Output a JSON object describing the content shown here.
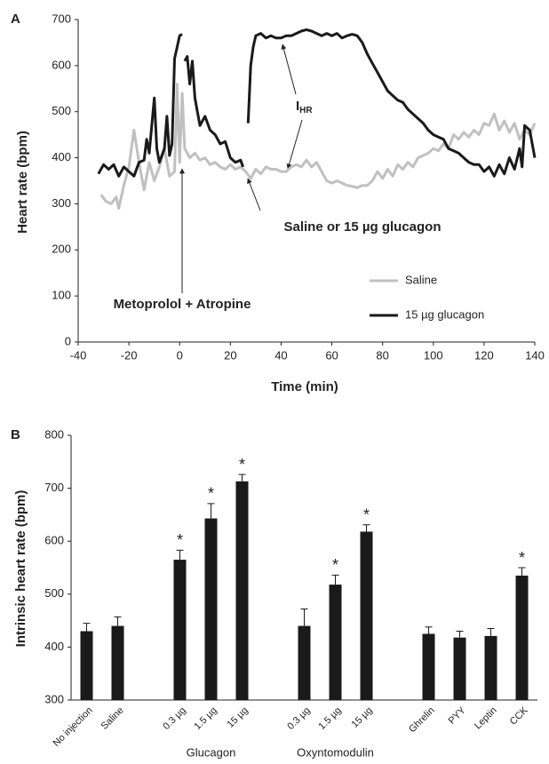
{
  "chart_data": [
    {
      "type": "line",
      "panel": "A",
      "xlabel": "Time (min)",
      "ylabel": "Heart rate (bpm)",
      "xlim": [
        -40,
        140
      ],
      "xticks": [
        -40,
        -20,
        0,
        20,
        40,
        60,
        80,
        100,
        120,
        140
      ],
      "ylim": [
        0,
        700
      ],
      "yticks": [
        0,
        100,
        200,
        300,
        400,
        500,
        600,
        700
      ],
      "legend": "lower right",
      "annotations": [
        "Metoprolol + Atropine",
        "Saline or 15 µg glucagon"
      ],
      "ihr_label": {
        "text": "I",
        "subscript": "HR"
      },
      "series": [
        {
          "name": "Saline",
          "color": "#c0c0c0",
          "x": [
            -31,
            -29,
            -27,
            -25,
            -24,
            -22,
            -20,
            -18,
            -16,
            -14,
            -12,
            -10,
            -8,
            -6,
            -4,
            -2,
            -1,
            0,
            1,
            2,
            4,
            6,
            8,
            10,
            12,
            14,
            16,
            18,
            20,
            22,
            24,
            26,
            28,
            30,
            32,
            34,
            36,
            38,
            40,
            42,
            44,
            46,
            48,
            50,
            52,
            54,
            56,
            58,
            60,
            62,
            64,
            66,
            68,
            70,
            72,
            74,
            76,
            78,
            80,
            82,
            84,
            86,
            88,
            90,
            92,
            94,
            96,
            98,
            100,
            102,
            104,
            106,
            108,
            110,
            112,
            114,
            116,
            118,
            120,
            122,
            124,
            126,
            128,
            130,
            132,
            134,
            136,
            138,
            140
          ],
          "values": [
            320,
            305,
            300,
            315,
            290,
            340,
            380,
            460,
            390,
            330,
            390,
            350,
            380,
            420,
            360,
            370,
            560,
            390,
            540,
            420,
            400,
            410,
            395,
            400,
            385,
            390,
            380,
            375,
            385,
            375,
            380,
            370,
            355,
            375,
            365,
            380,
            375,
            375,
            370,
            370,
            380,
            385,
            380,
            395,
            380,
            390,
            370,
            350,
            345,
            350,
            345,
            340,
            338,
            335,
            340,
            340,
            350,
            370,
            355,
            375,
            360,
            385,
            375,
            390,
            380,
            400,
            405,
            410,
            420,
            415,
            430,
            420,
            450,
            440,
            455,
            445,
            460,
            450,
            475,
            470,
            495,
            460,
            480,
            455,
            475,
            440,
            460,
            450,
            475
          ]
        },
        {
          "name": "15 µg glucagon",
          "color": "#1a1a1a",
          "x": [
            -32,
            -30,
            -28,
            -26,
            -24,
            -22,
            -20,
            -18,
            -16,
            -14,
            -13,
            -12,
            -10,
            -9,
            -8,
            -6,
            -5,
            -4,
            -3,
            -2,
            -1,
            0,
            1,
            1.5,
            2,
            3,
            4,
            5,
            6,
            7,
            8,
            10,
            12,
            14,
            16,
            18,
            20,
            22,
            24,
            25,
            26,
            27,
            28,
            29,
            30,
            32,
            34,
            36,
            38,
            40,
            42,
            44,
            46,
            48,
            50,
            52,
            54,
            56,
            58,
            60,
            62,
            64,
            66,
            68,
            70,
            72,
            74,
            76,
            78,
            80,
            82,
            84,
            86,
            88,
            90,
            92,
            94,
            96,
            98,
            100,
            102,
            104,
            106,
            108,
            110,
            112,
            114,
            116,
            118,
            120,
            122,
            124,
            126,
            128,
            130,
            132,
            134,
            135,
            136,
            138,
            140
          ],
          "values": [
            365,
            385,
            375,
            385,
            360,
            380,
            370,
            360,
            390,
            395,
            440,
            410,
            530,
            420,
            390,
            420,
            490,
            405,
            430,
            615,
            640,
            665,
            668,
            null,
            610,
            620,
            560,
            610,
            530,
            500,
            470,
            490,
            460,
            450,
            430,
            435,
            400,
            390,
            395,
            380,
            null,
            475,
            600,
            640,
            665,
            670,
            660,
            665,
            660,
            660,
            665,
            665,
            670,
            675,
            678,
            675,
            670,
            665,
            670,
            665,
            670,
            660,
            665,
            668,
            665,
            650,
            625,
            605,
            585,
            565,
            545,
            535,
            525,
            520,
            505,
            495,
            485,
            475,
            460,
            450,
            445,
            440,
            420,
            415,
            410,
            400,
            390,
            385,
            385,
            370,
            380,
            360,
            385,
            365,
            400,
            375,
            420,
            380,
            470,
            460,
            400
          ]
        }
      ]
    },
    {
      "type": "bar",
      "panel": "B",
      "ylabel": "Intrinsic heart rate (bpm)",
      "ylim": [
        300,
        800
      ],
      "yticks": [
        300,
        400,
        500,
        600,
        700,
        800
      ],
      "color": "#1a1a1a",
      "categories": [
        "No injection",
        "Saline",
        null,
        "0.3 µg",
        "1.5 µg",
        "15 µg",
        null,
        "0.3 µg",
        "1.5 µg",
        "15 µg",
        null,
        "Ghrelin",
        "PYY",
        "Leptin",
        "CCK"
      ],
      "group_labels": [
        null,
        null,
        null,
        null,
        "Glucagon",
        null,
        null,
        null,
        "Oxyntomodulin",
        null,
        null,
        null,
        null,
        null,
        null
      ],
      "values": [
        430,
        440,
        null,
        565,
        643,
        713,
        null,
        440,
        518,
        618,
        null,
        425,
        418,
        421,
        535
      ],
      "errors": [
        15,
        17,
        null,
        18,
        28,
        13,
        null,
        32,
        18,
        13,
        null,
        13,
        12,
        14,
        15
      ],
      "marker_labels": [
        null,
        null,
        null,
        "*",
        "*",
        "*",
        null,
        null,
        "*",
        "*",
        null,
        null,
        null,
        null,
        "*"
      ]
    }
  ]
}
